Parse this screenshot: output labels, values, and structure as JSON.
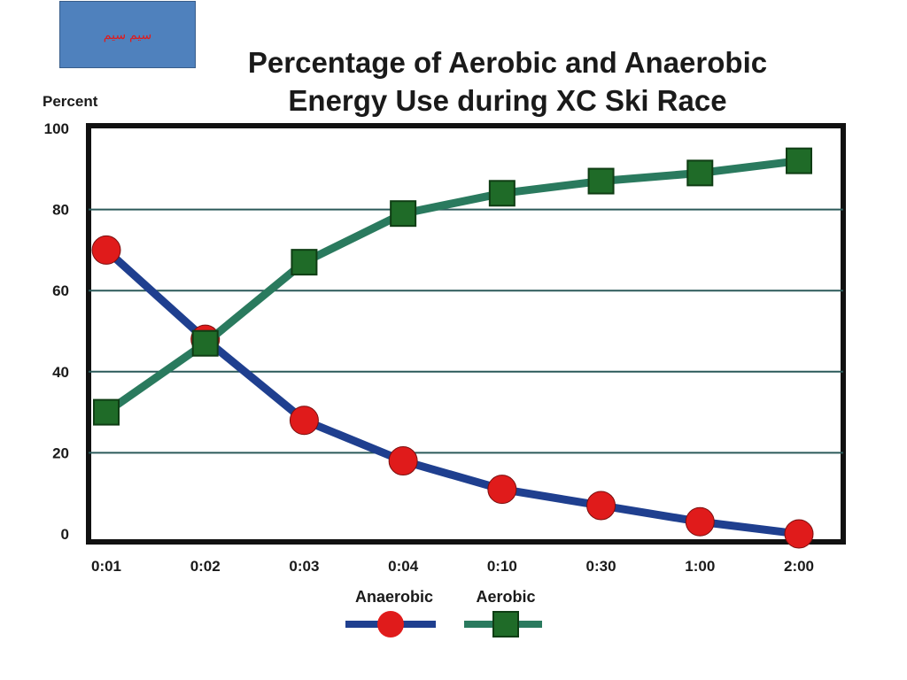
{
  "label_box": {
    "text": "سيم سيم"
  },
  "chart_data": {
    "type": "line",
    "title_lines": [
      "Percentage of Aerobic and Anaerobic",
      "Energy Use during XC Ski Race"
    ],
    "ylabel": "Percent",
    "xlabel": "",
    "categories": [
      "0:01",
      "0:02",
      "0:03",
      "0:04",
      "0:10",
      "0:30",
      "1:00",
      "2:00"
    ],
    "y_ticks": [
      {
        "value": 0,
        "label": "0"
      },
      {
        "value": 20,
        "label": "20"
      },
      {
        "value": 40,
        "label": "40"
      },
      {
        "value": 60,
        "label": "60"
      },
      {
        "value": 80,
        "label": "80"
      },
      {
        "value": 100,
        "label": "100"
      }
    ],
    "ylim": [
      0,
      100
    ],
    "grid": true,
    "legend_position": "bottom-center",
    "series": [
      {
        "name": "Anaerobic",
        "color": "#1f3f8f",
        "marker": "circle",
        "marker_color": "#e01b1b",
        "values": [
          70,
          48,
          28,
          18,
          11,
          7,
          3,
          0
        ]
      },
      {
        "name": "Aerobic",
        "color": "#2a7a5e",
        "marker": "square",
        "marker_color": "#1f6b28",
        "values": [
          30,
          47,
          67,
          79,
          84,
          87,
          89,
          92
        ]
      }
    ]
  }
}
